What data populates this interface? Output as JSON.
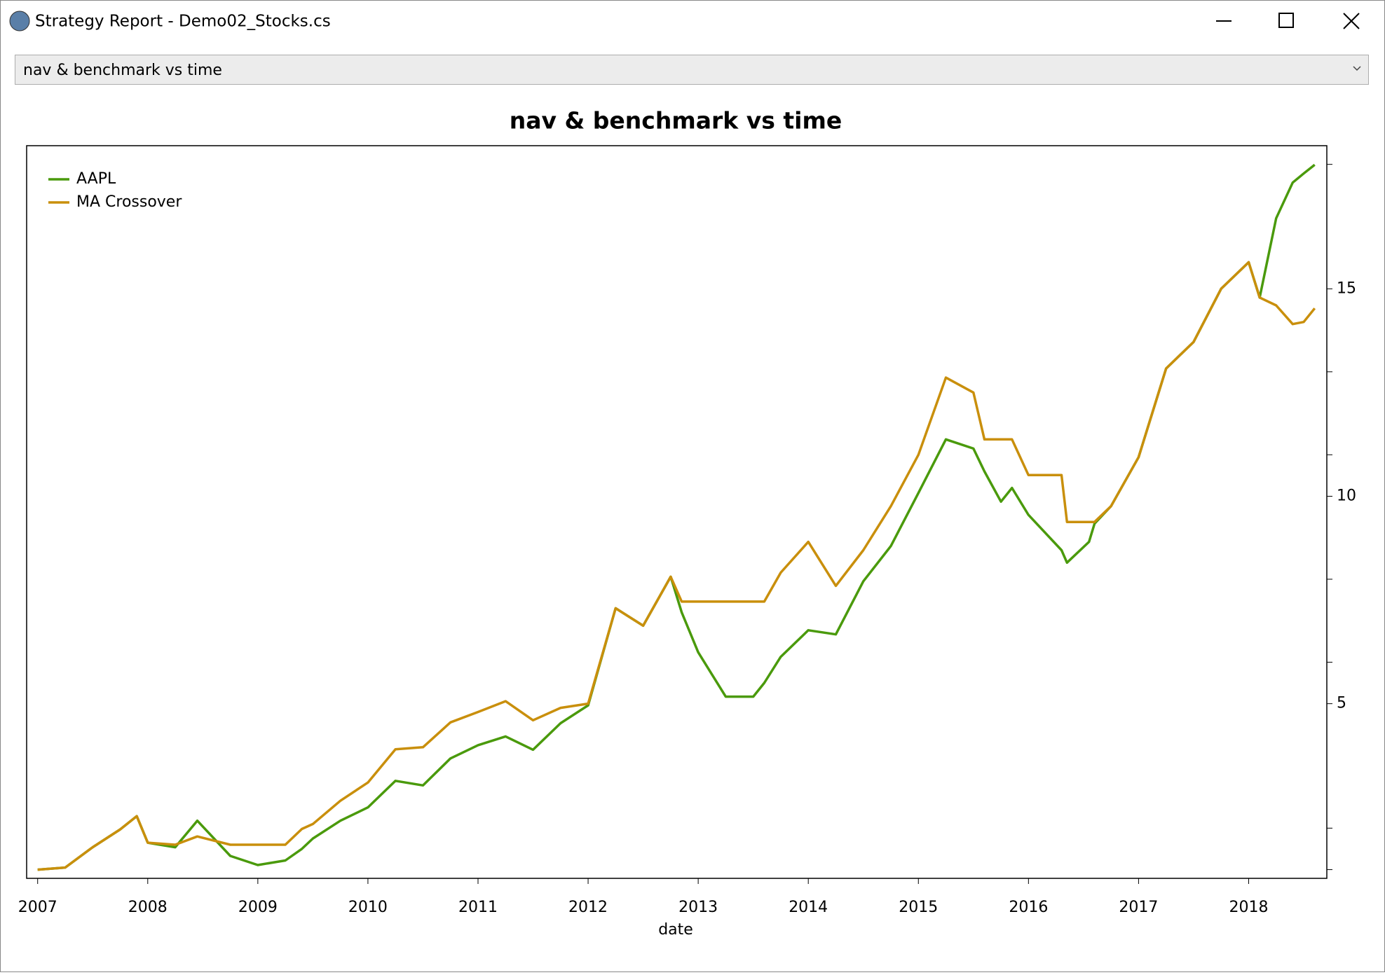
{
  "window": {
    "title": "Strategy Report - Demo02_Stocks.cs"
  },
  "dropdown": {
    "selected": "nav & benchmark vs time"
  },
  "chart_data": {
    "type": "line",
    "title": "nav & benchmark vs time",
    "x_label": "date",
    "x": [
      2007,
      2007.25,
      2007.5,
      2007.75,
      2007.9,
      2008,
      2008.25,
      2008.45,
      2008.75,
      2009,
      2009.25,
      2009.4,
      2009.5,
      2009.75,
      2010,
      2010.25,
      2010.5,
      2010.75,
      2011,
      2011.25,
      2011.5,
      2011.75,
      2012,
      2012.25,
      2012.5,
      2012.75,
      2012.85,
      2013,
      2013.25,
      2013.5,
      2013.6,
      2013.75,
      2014,
      2014.25,
      2014.5,
      2014.75,
      2015,
      2015.25,
      2015.5,
      2015.6,
      2015.75,
      2015.85,
      2016,
      2016.3,
      2016.35,
      2016.55,
      2016.6,
      2016.75,
      2017,
      2017.25,
      2017.5,
      2017.75,
      2018,
      2018.1,
      2018.25,
      2018.4,
      2018.5,
      2018.6
    ],
    "series": [
      {
        "name": "AAPL",
        "color": "#4a9a0c",
        "values": [
          1.0,
          1.05,
          1.54,
          1.97,
          2.29,
          1.65,
          1.54,
          2.18,
          1.33,
          1.11,
          1.22,
          1.5,
          1.75,
          2.18,
          2.5,
          3.14,
          3.03,
          3.68,
          4.0,
          4.21,
          3.89,
          4.53,
          4.96,
          7.3,
          6.88,
          8.06,
          7.2,
          6.24,
          5.17,
          5.17,
          5.5,
          6.13,
          6.77,
          6.67,
          7.95,
          8.8,
          10.08,
          11.37,
          11.15,
          10.6,
          9.87,
          10.2,
          9.55,
          8.7,
          8.4,
          8.9,
          9.34,
          9.76,
          10.94,
          13.08,
          13.72,
          15.0,
          15.64,
          14.79,
          16.7,
          17.56,
          17.78,
          17.99
        ]
      },
      {
        "name": "MA Crossover",
        "color": "#c98f0c",
        "values": [
          1.0,
          1.05,
          1.54,
          1.97,
          2.29,
          1.65,
          1.6,
          1.8,
          1.6,
          1.6,
          1.6,
          1.98,
          2.1,
          2.66,
          3.1,
          3.9,
          3.95,
          4.55,
          4.8,
          5.06,
          4.6,
          4.9,
          5.0,
          7.3,
          6.88,
          8.06,
          7.46,
          7.46,
          7.46,
          7.46,
          7.46,
          8.16,
          8.9,
          7.84,
          8.7,
          9.76,
          11.0,
          12.86,
          12.5,
          11.37,
          11.37,
          11.37,
          10.51,
          10.51,
          9.38,
          9.38,
          9.38,
          9.76,
          10.94,
          13.08,
          13.72,
          15.0,
          15.64,
          14.79,
          14.6,
          14.15,
          14.2,
          14.53
        ]
      }
    ],
    "xlim": [
      2006.9,
      2018.71
    ],
    "xticks": [
      2007,
      2008,
      2009,
      2010,
      2011,
      2012,
      2013,
      2014,
      2015,
      2016,
      2017,
      2018
    ],
    "ylim": [
      0.79,
      18.45
    ],
    "yticks": [
      5,
      10,
      15
    ],
    "yminorticks": [
      1,
      2,
      6,
      8,
      11,
      13,
      18
    ],
    "legend": "top-left"
  }
}
